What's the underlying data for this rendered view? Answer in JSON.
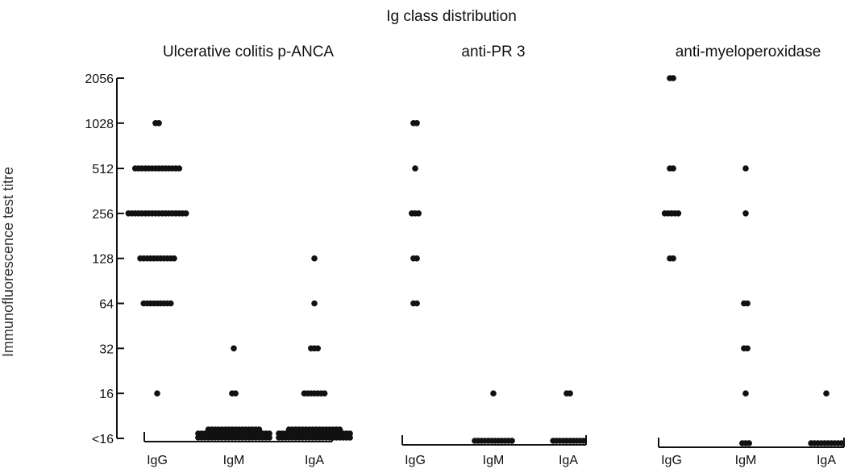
{
  "chart_data": {
    "type": "scatter",
    "title": "Ig class distribution",
    "ylabel": "Immunofluorescence test titre",
    "y_scale": "log2",
    "y_ticks": [
      "<16",
      "16",
      "32",
      "64",
      "128",
      "256",
      "512",
      "1028",
      "2056"
    ],
    "y_tick_values": [
      8,
      16,
      32,
      64,
      128,
      256,
      512,
      1028,
      2056
    ],
    "grid": false,
    "legend": "none",
    "point_color": "#111111",
    "panels": [
      {
        "title": "Ulcerative colitis p-ANCA",
        "groups": [
          {
            "category": "IgG",
            "points": [
              {
                "value": 1028,
                "count": 2
              },
              {
                "value": 512,
                "count": 14
              },
              {
                "value": 256,
                "count": 18
              },
              {
                "value": 128,
                "count": 11
              },
              {
                "value": 64,
                "count": 9
              },
              {
                "value": 16,
                "count": 1
              }
            ]
          },
          {
            "category": "IgM",
            "points": [
              {
                "value": 32,
                "count": 1
              },
              {
                "value": 16,
                "count": 2
              },
              {
                "value": 8,
                "count": 60
              }
            ]
          },
          {
            "category": "IgA",
            "points": [
              {
                "value": 128,
                "count": 1
              },
              {
                "value": 64,
                "count": 1
              },
              {
                "value": 32,
                "count": 3
              },
              {
                "value": 16,
                "count": 7
              },
              {
                "value": 8,
                "count": 60
              }
            ]
          }
        ]
      },
      {
        "title": "anti-PR 3",
        "groups": [
          {
            "category": "IgG",
            "points": [
              {
                "value": 1028,
                "count": 2
              },
              {
                "value": 512,
                "count": 1
              },
              {
                "value": 256,
                "count": 3
              },
              {
                "value": 128,
                "count": 2
              },
              {
                "value": 64,
                "count": 2
              }
            ]
          },
          {
            "category": "IgM",
            "points": [
              {
                "value": 16,
                "count": 1
              },
              {
                "value": 8,
                "count": 12
              }
            ]
          },
          {
            "category": "IgA",
            "points": [
              {
                "value": 16,
                "count": 2
              },
              {
                "value": 8,
                "count": 10
              }
            ]
          }
        ]
      },
      {
        "title": "anti-myeloperoxidase",
        "groups": [
          {
            "category": "IgG",
            "points": [
              {
                "value": 2056,
                "count": 2
              },
              {
                "value": 512,
                "count": 2
              },
              {
                "value": 256,
                "count": 5
              },
              {
                "value": 128,
                "count": 2
              }
            ]
          },
          {
            "category": "IgM",
            "points": [
              {
                "value": 512,
                "count": 1
              },
              {
                "value": 256,
                "count": 1
              },
              {
                "value": 64,
                "count": 2
              },
              {
                "value": 32,
                "count": 2
              },
              {
                "value": 16,
                "count": 1
              },
              {
                "value": 8,
                "count": 3
              }
            ]
          },
          {
            "category": "IgA",
            "points": [
              {
                "value": 16,
                "count": 1
              },
              {
                "value": 8,
                "count": 10
              }
            ]
          }
        ]
      }
    ]
  }
}
